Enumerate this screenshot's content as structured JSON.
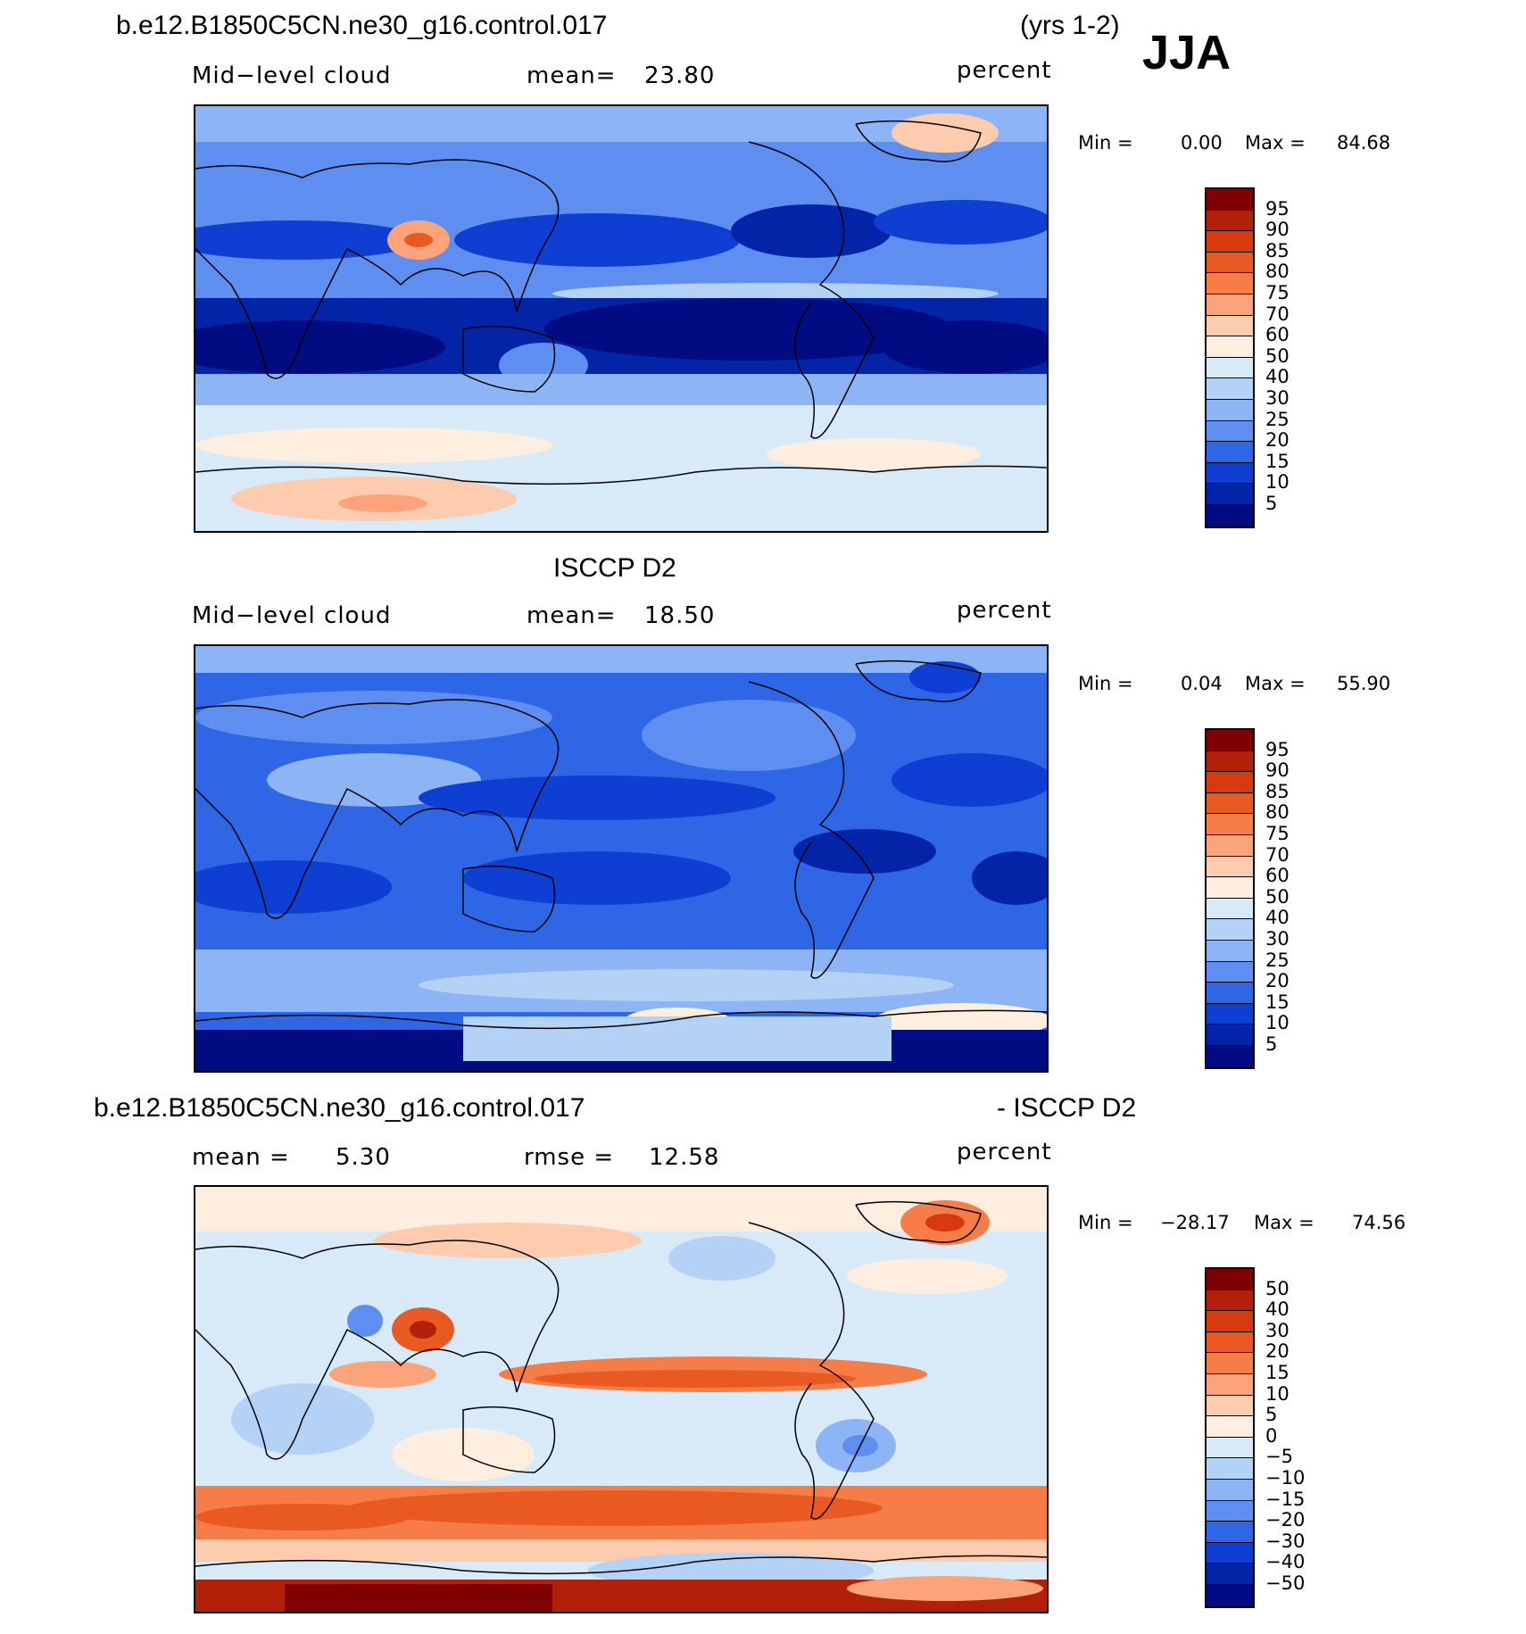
{
  "header": {
    "case_name": "b.e12.B1850C5CN.ne30_g16.control.017",
    "years": "(yrs 1-2)",
    "season": "JJA"
  },
  "panels": [
    {
      "variable": "Mid−level cloud",
      "stat_label": "mean=",
      "stat_value": "23.80",
      "units": "percent",
      "min_label": "Min =",
      "min_value": "0.00",
      "max_label": "Max =",
      "max_value": "84.68"
    },
    {
      "title": "ISCCP D2",
      "variable": "Mid−level cloud",
      "stat_label": "mean=",
      "stat_value": "18.50",
      "units": "percent",
      "min_label": "Min =",
      "min_value": "0.04",
      "max_label": "Max =",
      "max_value": "55.90"
    },
    {
      "title_left": "b.e12.B1850C5CN.ne30_g16.control.017",
      "title_right": "- ISCCP D2",
      "mean_label": "mean =",
      "mean_value": "5.30",
      "rmse_label": "rmse =",
      "rmse_value": "12.58",
      "units": "percent",
      "min_label": "Min =",
      "min_value": "−28.17",
      "max_label": "Max =",
      "max_value": "74.56"
    }
  ],
  "colorbar_abs": {
    "levels": [
      "95",
      "90",
      "85",
      "80",
      "75",
      "70",
      "60",
      "50",
      "40",
      "30",
      "25",
      "20",
      "15",
      "10",
      "5"
    ],
    "colors": [
      "#7f0000",
      "#b2200a",
      "#d63a0e",
      "#e95a22",
      "#f77d48",
      "#fba47c",
      "#fdcbad",
      "#fdeee0",
      "#d8eaf8",
      "#b4d2f6",
      "#8db4f4",
      "#5d8ef0",
      "#2f66e6",
      "#0f3ed2",
      "#0424a8",
      "#020c82"
    ]
  },
  "colorbar_diff": {
    "levels": [
      "50",
      "40",
      "30",
      "20",
      "15",
      "10",
      "5",
      "0",
      "−5",
      "−10",
      "−15",
      "−20",
      "−30",
      "−40",
      "−50"
    ],
    "colors": [
      "#7f0000",
      "#b2200a",
      "#d63a0e",
      "#e95a22",
      "#f77d48",
      "#fba47c",
      "#fdcbad",
      "#fdeee0",
      "#d8eaf8",
      "#b4d2f6",
      "#8db4f4",
      "#5d8ef0",
      "#2f66e6",
      "#0f3ed2",
      "#0424a8",
      "#020c82"
    ]
  }
}
